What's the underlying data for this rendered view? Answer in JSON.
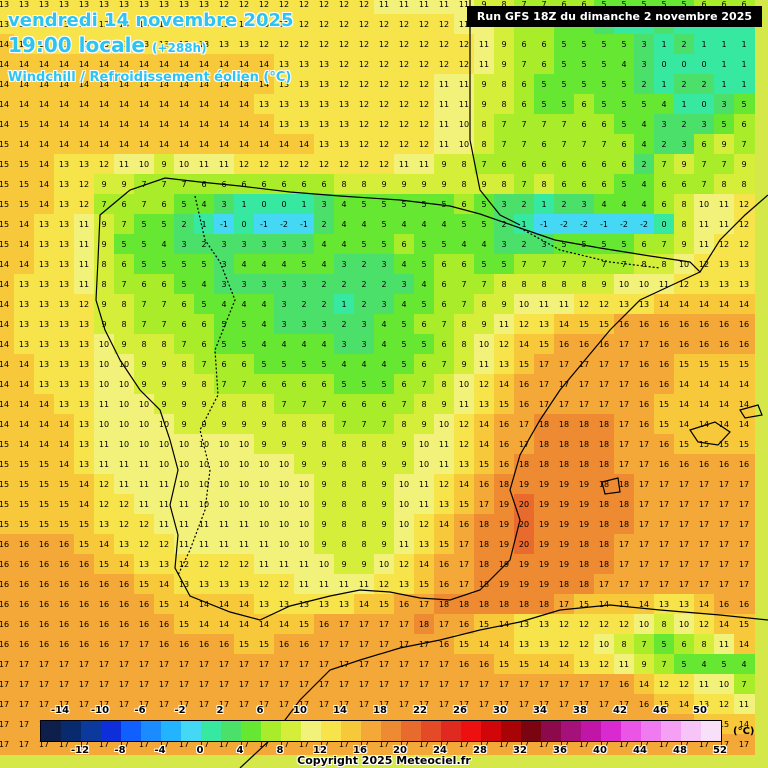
{
  "header": {
    "date_line": "vendredi 14 novembre 2025",
    "time_line": "19:00 locale",
    "offset": "(+288h)",
    "variable": "Windchill / Refroidissement éolien (°C)",
    "run": "Run GFS 18Z du dimanche 2 novembre 2025"
  },
  "legend": {
    "unit": "(°C)",
    "top_ticks": [
      "-14",
      "-10",
      "-6",
      "-2",
      "2",
      "6",
      "10",
      "14",
      "18",
      "22",
      "26",
      "30",
      "34",
      "38",
      "42",
      "46",
      "50"
    ],
    "bottom_ticks": [
      "-12",
      "-8",
      "-4",
      "0",
      "4",
      "8",
      "12",
      "16",
      "20",
      "24",
      "28",
      "32",
      "36",
      "40",
      "44",
      "48",
      "52"
    ],
    "colors": [
      "#0d1f4a",
      "#0a2a6e",
      "#0b3a9c",
      "#0d2ed8",
      "#1060ff",
      "#1a8cff",
      "#22b4ff",
      "#45d8f5",
      "#36e8a0",
      "#4ae06a",
      "#66e832",
      "#a8ec2a",
      "#d4ee3a",
      "#f2f27a",
      "#f7e34a",
      "#f6c83a",
      "#f3a838",
      "#ee8a32",
      "#e86a2c",
      "#e44a26",
      "#e02a20",
      "#ee0f10",
      "#d0060a",
      "#a80408",
      "#7a0410",
      "#8c0a4c",
      "#a6107a",
      "#c015a6",
      "#d82ad0",
      "#ea55e6",
      "#f07af0",
      "#f5a0f5",
      "#f7c4f7",
      "#f8e0f8"
    ]
  },
  "copyright": "Copyright 2025 Meteociel.fr",
  "map": {
    "value_rows": [
      "13 13 13 13 13 13 13 13 13 13 13 12 12 12 12 12 12 12 12 11 11 11 11 11 9 8 7 7 6 6 5 5 5 5 5 6 6 6",
      "13 13 13 13 13 13 13 13 13 13 13 13 13 13 12 12 12 12 12 12 12 12 12 11 11 9 7 6 5 4 3 1 0 2 1 1 1 1",
      "14 13 13 13 13 13 13 13 13 13 13 13 13 12 12 12 12 12 12 12 12 12 12 12 11 9 6 6 5 5 5 5 3 1 2 1 1 1",
      "14 14 14 14 14 14 14 14 14 14 14 14 14 14 13 13 13 12 12 12 12 12 12 12 11 9 7 6 5 5 5 4 3 0 0 0 1 1",
      "14 14 14 14 14 14 14 14 14 14 14 14 14 14 13 13 13 12 12 12 12 12 11 11 9 8 6 5 5 5 5 5 2 1 2 2 1 1",
      "14 14 14 14 14 14 14 14 14 14 14 14 14 13 13 13 13 13 12 12 12 12 11 11 9 8 6 5 5 6 5 5 5 4 1 0 3 5",
      "14 15 14 14 14 14 14 14 14 14 14 14 14 14 13 13 13 13 12 12 12 12 11 10 8 7 7 7 7 6 6 5 4 3 2 3 5 6",
      "15 14 14 14 14 14 14 14 14 14 14 14 14 14 14 14 13 13 12 12 12 12 11 10 8 7 7 6 7 7 7 6 4 2 3 6 9 7",
      "15 15 14 13 13 12 11 10 9 10 11 11 12 12 12 12 12 12 12 12 11 11 9 8 7 6 6 6 6 6 6 6 2 7 9 7 7 9",
      "15 15 14 13 12 9 9 7 7 7 6 6 6 6 6 6 6 8 8 9 9 9 9 8 9 8 7 8 6 6 6 5 4 6 6 7 8 8",
      "15 15 14 13 12 7 6 7 6 5 4 3 1 0 0 1 3 4 5 5 5 5 5 6 5 3 2 1 2 3 4 4 4 6 8 10 11 12",
      "15 14 13 13 11 9 7 5 5 2 1 -1 0 -1 -2 -1 2 4 4 5 4 4 4 5 5 2 1 -1 -2 -2 -1 -2 -2 0 8 11 11 12",
      "15 14 13 13 11 9 5 5 4 3 2 3 3 3 3 3 4 4 5 5 6 5 5 4 4 3 2 3 5 5 5 5 6 7 9 11 12 12",
      "14 14 13 13 11 8 6 5 5 5 5 3 4 4 4 5 4 3 2 3 4 5 6 6 5 5 7 7 7 7 7 7 8 8 10 12 13 13",
      "14 13 13 13 11 8 7 6 6 5 4 3 3 3 3 3 2 2 2 2 3 4 6 7 7 8 8 8 8 8 9 10 10 11 12 13 13 13",
      "14 13 13 13 12 9 8 7 7 6 5 4 4 4 3 2 2 1 2 3 4 5 6 7 8 9 10 11 11 12 12 13 13 14 14 14 14 14",
      "14 13 13 13 13 9 8 7 7 6 6 5 5 4 3 3 3 2 3 4 5 6 7 8 9 11 12 13 14 15 15 16 16 16 16 16 16 16",
      "14 13 13 13 13 10 9 8 8 7 6 5 5 4 4 4 4 3 3 4 5 5 6 8 10 12 14 15 16 16 16 17 17 16 16 16 16 16",
      "14 14 13 13 13 10 10 9 9 8 7 6 6 5 5 5 5 4 4 4 5 6 7 9 11 13 15 17 17 17 17 17 16 16 15 15 15 15",
      "14 14 13 13 13 10 10 9 9 9 8 7 7 6 6 6 6 5 5 5 6 7 8 10 12 14 16 17 17 17 17 17 16 16 14 14 14 14",
      "14 14 14 13 13 11 10 10 9 9 9 8 8 8 7 7 7 6 6 6 7 8 9 11 13 15 16 17 17 17 17 17 16 15 14 14 14 14",
      "14 14 14 14 13 10 10 10 10 9 9 9 9 9 8 8 8 7 7 7 8 9 10 12 14 16 17 18 18 18 18 17 16 15 14 14 14 14",
      "15 14 14 14 13 11 10 10 10 10 10 10 10 9 9 9 8 8 8 8 9 10 11 12 14 16 17 18 18 18 18 17 17 16 15 15 15 15",
      "15 15 15 14 13 11 11 11 10 10 10 10 10 10 10 9 9 8 8 9 9 10 11 13 15 16 18 18 18 18 18 17 17 16 16 16 16 16",
      "15 15 15 15 14 12 11 11 11 10 10 10 10 10 10 10 9 8 8 9 10 11 12 14 16 18 19 19 19 19 18 18 17 17 17 17 17 17",
      "15 15 15 15 14 12 12 11 11 11 10 10 10 10 10 10 9 8 8 9 10 11 13 15 17 19 20 19 19 19 18 18 17 17 17 17 17 17",
      "15 15 15 15 15 13 12 12 11 11 11 11 11 10 10 10 9 8 8 9 10 12 14 16 18 19 20 19 19 19 18 18 17 17 17 17 17 17",
      "16 16 16 16 15 14 13 12 12 11 11 11 11 11 10 10 9 8 8 9 11 13 15 17 18 19 20 19 19 18 18 17 17 17 17 17 17 17",
      "16 16 16 16 16 15 14 13 13 12 12 12 12 11 11 11 10 9 9 10 12 14 16 17 18 19 19 19 19 18 18 17 17 17 17 17 17 17",
      "16 16 16 16 16 16 16 15 14 13 13 13 13 12 12 11 11 11 11 12 13 15 16 17 18 19 19 19 18 18 17 17 17 17 17 17 17 17",
      "16 16 16 16 16 16 16 16 15 14 14 14 14 13 13 13 13 13 14 15 16 17 18 18 18 18 18 18 17 15 14 15 14 13 13 14 16 16",
      "16 16 16 16 16 16 16 16 16 15 14 14 14 14 14 15 16 17 17 17 17 18 17 16 15 14 13 13 12 12 12 12 10 8 10 12 14 15",
      "16 16 16 16 16 16 17 17 16 16 16 16 15 15 16 16 17 17 17 17 17 17 16 15 14 14 13 13 12 12 10 8 7 5 6 8 11 14",
      "17 17 17 17 17 17 17 17 17 17 17 17 17 17 17 17 17 17 17 17 17 17 17 16 16 15 15 14 14 13 12 11 9 7 5 4 5 4",
      "17 17 17 17 17 17 17 17 17 17 17 17 17 17 17 17 17 17 17 17 17 17 17 17 17 17 17 17 17 17 17 16 14 12 12 11 10 7",
      "17 17 17 17 17 17 17 17 17 17 17 17 17 17 17 17 17 17 17 17 17 17 17 17 17 17 17 17 17 17 17 17 16 15 14 13 12 11",
      "17 17 17 17 17 17 17 17 17 17 17 17 17 17 17 17 17 17 17 17 17 17 17 17 17 17 17 17 17 17 17 17 17 16 16 15 15 14",
      "17 17 17 17 17 17 17 17 17 17 17 17 17 17 17 17 17 17 17 17 17 17 17 17 17 17 17 17 17 17 17 17 17 17 17 17 17 17"
    ]
  }
}
